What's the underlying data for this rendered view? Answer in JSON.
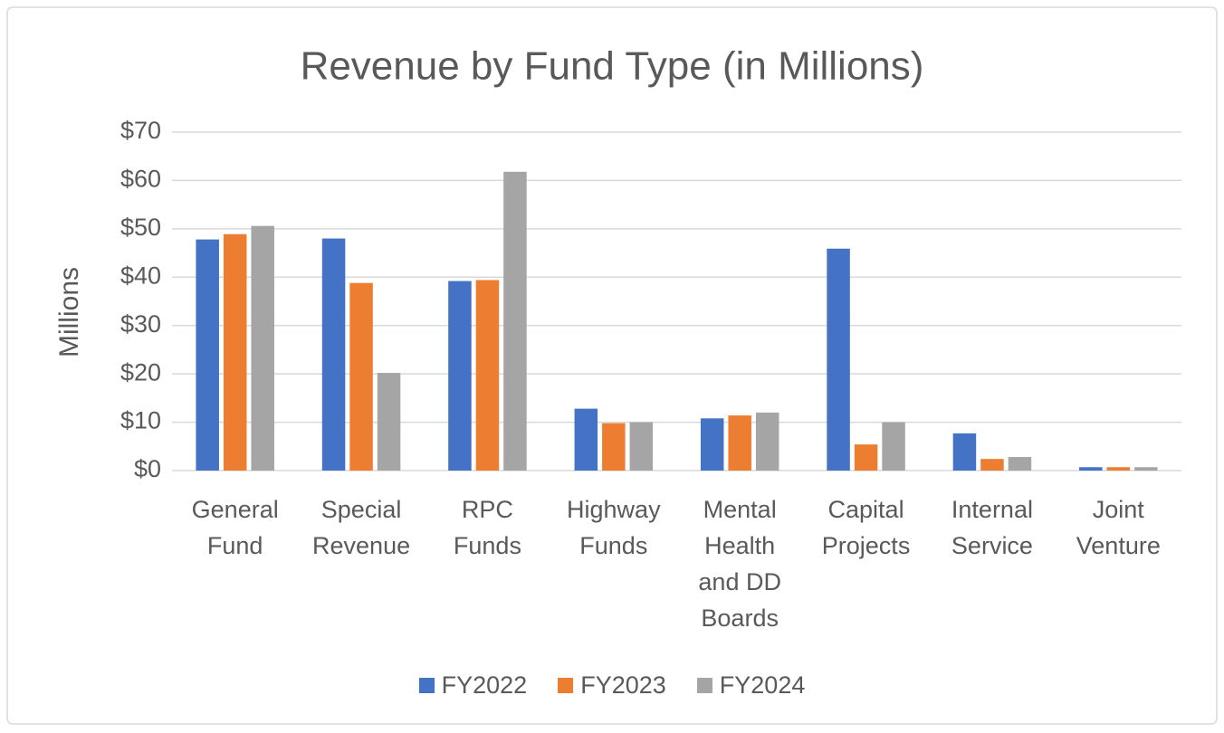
{
  "chart_data": {
    "type": "bar",
    "title": "Revenue by Fund Type (in Millions)",
    "y_axis_label": "Millions",
    "categories": [
      "General Fund",
      "Special Revenue",
      "RPC Funds",
      "Highway Funds",
      "Mental Health and DD Boards",
      "Capital Projects",
      "Internal Service",
      "Joint Venture"
    ],
    "series": [
      {
        "name": "FY2022",
        "color": "#4472c4",
        "values": [
          47.8,
          48.0,
          39.2,
          12.8,
          10.8,
          45.9,
          7.7,
          0.7
        ]
      },
      {
        "name": "FY2023",
        "color": "#ed7d31",
        "values": [
          48.9,
          38.8,
          39.4,
          9.8,
          11.4,
          5.4,
          2.4,
          0.7
        ]
      },
      {
        "name": "FY2024",
        "color": "#a5a5a5",
        "values": [
          50.6,
          20.2,
          61.8,
          10.0,
          12.0,
          10.0,
          2.8,
          0.7
        ]
      }
    ],
    "ylim": [
      0,
      70
    ],
    "yticks": [
      {
        "value": 0,
        "label": "$0"
      },
      {
        "value": 10,
        "label": "$10"
      },
      {
        "value": 20,
        "label": "$20"
      },
      {
        "value": 30,
        "label": "$30"
      },
      {
        "value": 40,
        "label": "$40"
      },
      {
        "value": 50,
        "label": "$50"
      },
      {
        "value": 60,
        "label": "$60"
      },
      {
        "value": 70,
        "label": "$70"
      }
    ],
    "grid": true,
    "legend": "bottom"
  }
}
